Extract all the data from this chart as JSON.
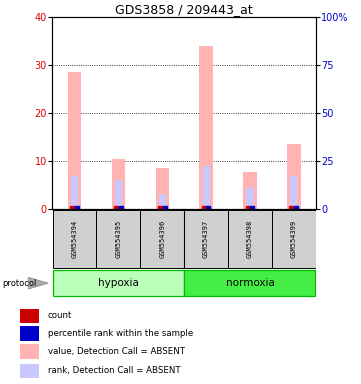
{
  "title": "GDS3858 / 209443_at",
  "samples": [
    "GSM554394",
    "GSM554395",
    "GSM554396",
    "GSM554397",
    "GSM554398",
    "GSM554399"
  ],
  "value_bars": [
    28.5,
    10.5,
    8.5,
    34.0,
    7.8,
    13.5
  ],
  "rank_bars": [
    7.0,
    6.2,
    3.2,
    9.0,
    4.5,
    7.0
  ],
  "ylim_left": [
    0,
    40
  ],
  "ylim_right": [
    0,
    100
  ],
  "yticks_left": [
    0,
    10,
    20,
    30,
    40
  ],
  "ytick_labels_right": [
    "0",
    "25",
    "50",
    "75",
    "100%"
  ],
  "color_value_bar": "#ffb3b3",
  "color_rank_bar": "#c8c8ff",
  "color_red_sq": "#cc0000",
  "color_blue_sq": "#0000cc",
  "color_hypoxia": "#bbffbb",
  "color_normoxia": "#44ee44",
  "group_border": "#00bb00",
  "ytick_color_left": "#dd0000",
  "ytick_color_right": "#0000cc",
  "legend_labels": [
    "count",
    "percentile rank within the sample",
    "value, Detection Call = ABSENT",
    "rank, Detection Call = ABSENT"
  ],
  "legend_colors": [
    "#cc0000",
    "#0000cc",
    "#ffb3b3",
    "#c8c8ff"
  ]
}
